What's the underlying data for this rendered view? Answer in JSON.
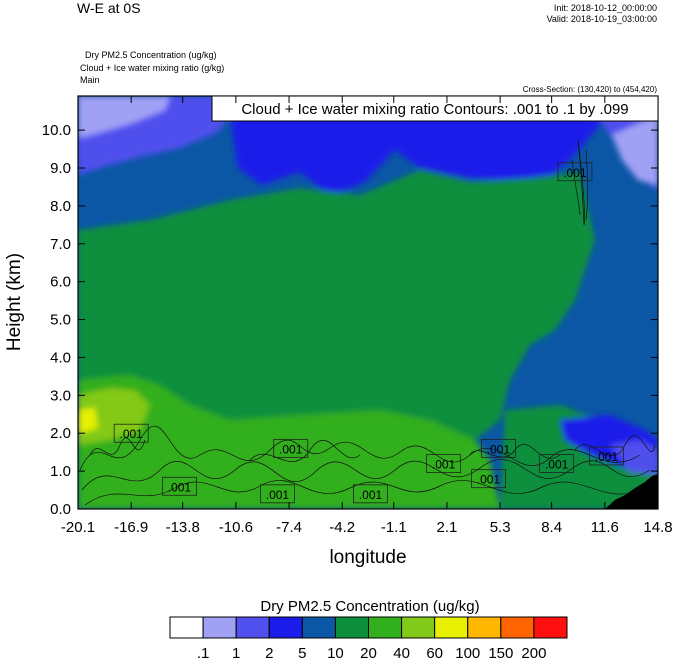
{
  "header": {
    "title": "W-E at 0S",
    "init": "Init: 2018-10-12_00:00:00",
    "valid": "Valid: 2018-10-19_03:00:00",
    "field1": "Dry PM2.5 Concentration   (ug/kg)",
    "field2": "Cloud + Ice water mixing ratio   (g/kg)",
    "field3": "Main",
    "cross_section": "Cross-Section: (130,420) to (454,420)"
  },
  "chart_data": {
    "type": "heatmap",
    "contour_title": "Cloud + Ice water mixing ratio Contours: .001 to .1 by .099",
    "xlabel": "longitude",
    "ylabel": "Height (km)",
    "x_ticks": [
      "-20.1",
      "-16.9",
      "-13.8",
      "-10.6",
      "-7.4",
      "-4.2",
      "-1.1",
      "2.1",
      "5.3",
      "8.4",
      "11.6",
      "14.8"
    ],
    "y_ticks": [
      "0.0",
      "1.0",
      "2.0",
      "3.0",
      "4.0",
      "5.0",
      "6.0",
      "7.0",
      "8.0",
      "9.0",
      "10.0"
    ],
    "ylim": [
      0,
      10.9
    ],
    "xlim": [
      -20.1,
      14.8
    ],
    "colorbar": {
      "title": "Dry PM2.5 Concentration  (ug/kg)",
      "labels": [
        ".1",
        "1",
        "2",
        "5",
        "10",
        "20",
        "40",
        "60",
        "100",
        "150",
        "200"
      ],
      "colors": [
        "#ffffff",
        "#a0a0f5",
        "#5050ee",
        "#1b1bea",
        "#0b57a6",
        "#0d8f3c",
        "#31af1c",
        "#83c919",
        "#e6f000",
        "#ffb700",
        "#ff6400",
        "#ff1010"
      ]
    },
    "contour_labels": [
      {
        "text": ".001",
        "lon": -16.9,
        "h": 2.0
      },
      {
        "text": ".001",
        "lon": -7.3,
        "h": 1.6
      },
      {
        "text": ".001",
        "lon": 1.9,
        "h": 1.2
      },
      {
        "text": ".001",
        "lon": 5.2,
        "h": 1.6
      },
      {
        "text": ".001",
        "lon": 8.7,
        "h": 1.2
      },
      {
        "text": ".001",
        "lon": 11.7,
        "h": 1.4
      },
      {
        "text": ".001",
        "lon": -14.0,
        "h": 0.6
      },
      {
        "text": ".001",
        "lon": -8.1,
        "h": 0.4
      },
      {
        "text": ".001",
        "lon": -2.5,
        "h": 0.4
      },
      {
        "text": ".001",
        "lon": 4.6,
        "h": 0.8
      },
      {
        "text": ".001",
        "lon": 9.8,
        "h": 8.9
      }
    ]
  }
}
